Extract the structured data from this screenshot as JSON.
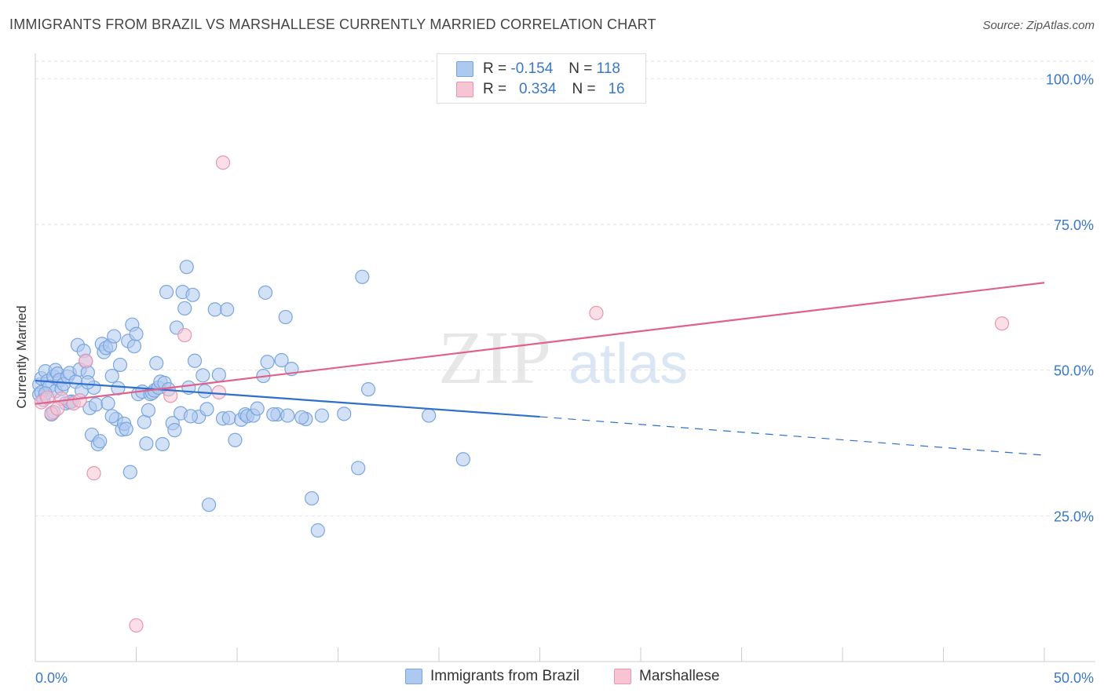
{
  "title": "IMMIGRANTS FROM BRAZIL VS MARSHALLESE CURRENTLY MARRIED CORRELATION CHART",
  "source": "Source: ZipAtlas.com",
  "watermark": {
    "zip": "ZIP",
    "atlas": "atlas"
  },
  "legend": {
    "rows": [
      {
        "r_label": "R =",
        "r_value": "-0.154",
        "n_label": "N =",
        "n_value": "118",
        "color": "#aec9f0",
        "border": "#7aa6de"
      },
      {
        "r_label": "R =",
        "r_value": "0.334",
        "n_label": "N =",
        "n_value": "16",
        "color": "#f7c4d3",
        "border": "#e896b1"
      }
    ]
  },
  "chart_data": {
    "type": "scatter",
    "title": "IMMIGRANTS FROM BRAZIL VS MARSHALLESE CURRENTLY MARRIED CORRELATION CHART",
    "xlabel": "",
    "ylabel": "Currently Married",
    "xlim": [
      0,
      50
    ],
    "ylim": [
      0,
      103
    ],
    "x_tick_labels": [
      "0.0%",
      "50.0%"
    ],
    "y_ticks": [
      25,
      50,
      75,
      100
    ],
    "y_tick_labels": [
      "25.0%",
      "50.0%",
      "75.0%",
      "100.0%"
    ],
    "grid": "horizontal dashed",
    "legend_position": "top-center",
    "series": [
      {
        "name": "Immigrants from Brazil",
        "color": "#7aa6de",
        "fill": "#aec9f0",
        "trend_color": "#2f6fcc",
        "trend": {
          "x0": 0,
          "y0": 48.2,
          "x1": 25,
          "y1": 42.0,
          "x_dash_end": 50,
          "y_dash_end": 35.4
        },
        "points": [
          [
            0.2,
            47.5
          ],
          [
            0.2,
            45.8
          ],
          [
            0.3,
            46.2
          ],
          [
            0.3,
            48.6
          ],
          [
            0.4,
            44.9
          ],
          [
            0.5,
            49.8
          ],
          [
            0.6,
            48.1
          ],
          [
            0.7,
            47.2
          ],
          [
            0.8,
            42.4
          ],
          [
            0.9,
            48.9
          ],
          [
            1.0,
            50.0
          ],
          [
            1.0,
            46.4
          ],
          [
            1.1,
            49.4
          ],
          [
            1.2,
            48.3
          ],
          [
            1.3,
            46.8
          ],
          [
            1.4,
            47.6
          ],
          [
            1.5,
            44.3
          ],
          [
            1.6,
            48.9
          ],
          [
            1.7,
            49.5
          ],
          [
            1.8,
            44.6
          ],
          [
            2.0,
            48.0
          ],
          [
            2.1,
            54.3
          ],
          [
            2.2,
            50.1
          ],
          [
            2.3,
            46.5
          ],
          [
            2.4,
            53.3
          ],
          [
            2.5,
            51.5
          ],
          [
            2.6,
            49.6
          ],
          [
            2.7,
            43.5
          ],
          [
            2.8,
            38.9
          ],
          [
            2.9,
            47.0
          ],
          [
            3.0,
            44.1
          ],
          [
            3.1,
            37.3
          ],
          [
            3.2,
            37.8
          ],
          [
            3.3,
            54.5
          ],
          [
            3.4,
            53.1
          ],
          [
            3.5,
            53.8
          ],
          [
            3.6,
            44.3
          ],
          [
            3.7,
            54.2
          ],
          [
            3.8,
            49.0
          ],
          [
            3.9,
            55.8
          ],
          [
            4.0,
            41.6
          ],
          [
            4.1,
            46.9
          ],
          [
            4.2,
            50.9
          ],
          [
            4.3,
            39.8
          ],
          [
            4.4,
            40.8
          ],
          [
            4.5,
            39.9
          ],
          [
            4.6,
            55.0
          ],
          [
            4.7,
            32.5
          ],
          [
            4.8,
            57.8
          ],
          [
            4.9,
            54.1
          ],
          [
            5.0,
            56.2
          ],
          [
            5.1,
            45.9
          ],
          [
            5.3,
            46.3
          ],
          [
            5.4,
            41.1
          ],
          [
            5.5,
            37.4
          ],
          [
            5.6,
            43.1
          ],
          [
            5.7,
            45.9
          ],
          [
            5.8,
            46.1
          ],
          [
            5.9,
            46.5
          ],
          [
            6.0,
            51.2
          ],
          [
            6.1,
            47.0
          ],
          [
            6.2,
            48.0
          ],
          [
            6.3,
            37.3
          ],
          [
            6.4,
            47.8
          ],
          [
            6.5,
            63.4
          ],
          [
            6.6,
            46.7
          ],
          [
            6.8,
            40.9
          ],
          [
            6.9,
            39.7
          ],
          [
            7.0,
            57.3
          ],
          [
            7.2,
            42.6
          ],
          [
            7.3,
            63.4
          ],
          [
            7.4,
            60.6
          ],
          [
            7.5,
            67.7
          ],
          [
            7.6,
            47.0
          ],
          [
            7.8,
            62.9
          ],
          [
            7.9,
            51.6
          ],
          [
            8.1,
            42.0
          ],
          [
            8.3,
            49.1
          ],
          [
            8.4,
            46.4
          ],
          [
            8.5,
            43.3
          ],
          [
            8.6,
            26.9
          ],
          [
            8.9,
            60.4
          ],
          [
            9.1,
            49.2
          ],
          [
            9.3,
            41.7
          ],
          [
            9.5,
            60.4
          ],
          [
            9.6,
            41.8
          ],
          [
            9.9,
            38.0
          ],
          [
            10.2,
            41.5
          ],
          [
            10.4,
            42.4
          ],
          [
            10.5,
            42.1
          ],
          [
            10.8,
            42.2
          ],
          [
            11.0,
            43.4
          ],
          [
            11.3,
            49.0
          ],
          [
            11.4,
            63.3
          ],
          [
            11.5,
            51.4
          ],
          [
            12.0,
            42.4
          ],
          [
            12.2,
            51.7
          ],
          [
            12.4,
            59.1
          ],
          [
            12.5,
            42.2
          ],
          [
            12.7,
            50.2
          ],
          [
            13.4,
            41.6
          ],
          [
            13.7,
            28.0
          ],
          [
            14.0,
            22.5
          ],
          [
            14.2,
            42.2
          ],
          [
            15.3,
            42.5
          ],
          [
            16.0,
            33.2
          ],
          [
            16.2,
            66.0
          ],
          [
            16.5,
            46.7
          ],
          [
            19.5,
            42.2
          ],
          [
            21.2,
            34.7
          ],
          [
            0.5,
            46.0
          ],
          [
            0.9,
            42.8
          ],
          [
            1.7,
            44.5
          ],
          [
            2.6,
            47.9
          ],
          [
            3.8,
            42.1
          ],
          [
            7.7,
            42.1
          ],
          [
            11.8,
            42.4
          ],
          [
            13.2,
            41.9
          ]
        ]
      },
      {
        "name": "Marshallese",
        "color": "#e896b1",
        "fill": "#f7c4d3",
        "trend_color": "#e0628c",
        "trend": {
          "x0": 0,
          "y0": 44.2,
          "x1": 50,
          "y1": 65.0
        },
        "points": [
          [
            0.3,
            44.5
          ],
          [
            0.8,
            42.6
          ],
          [
            1.3,
            45.1
          ],
          [
            1.9,
            44.3
          ],
          [
            2.5,
            51.6
          ],
          [
            2.9,
            32.3
          ],
          [
            5.0,
            6.2
          ],
          [
            6.7,
            45.6
          ],
          [
            7.4,
            56.0
          ],
          [
            9.1,
            46.2
          ],
          [
            9.3,
            85.6
          ],
          [
            27.8,
            59.8
          ],
          [
            47.9,
            58.0
          ],
          [
            0.6,
            45.3
          ],
          [
            1.1,
            43.4
          ],
          [
            2.2,
            44.8
          ]
        ]
      }
    ]
  },
  "bottom_legend": [
    "Immigrants from Brazil",
    "Marshallese"
  ]
}
